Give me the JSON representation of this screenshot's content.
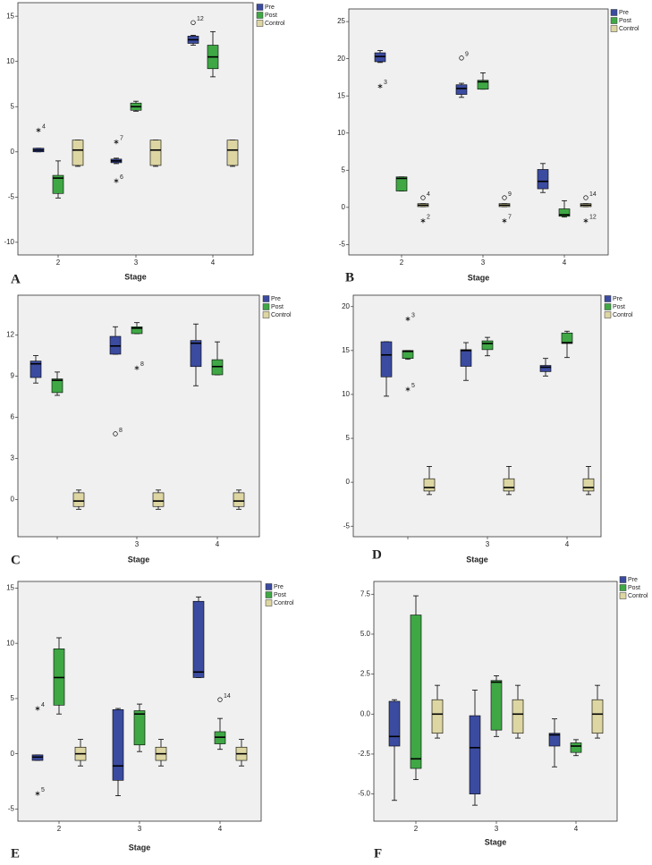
{
  "chart_data": [
    {
      "type": "box",
      "panel_label": "A",
      "xlabel": "Stage",
      "categories": [
        "2",
        "3",
        "4"
      ],
      "ylim": [
        -11.4,
        16.5
      ],
      "yticks": [
        15,
        10,
        5,
        0,
        -5,
        -10
      ],
      "series": [
        {
          "name": "Pre",
          "color": "#3b4ba0",
          "boxes": [
            {
              "min": 0.0,
              "q1": 0.0,
              "median": 0.2,
              "q3": 0.4,
              "max": 0.4,
              "outliers": [
                {
                  "value": 2.4,
                  "label": "4",
                  "symbol": "star"
                }
              ]
            },
            {
              "min": -1.3,
              "q1": -1.2,
              "median": -1.0,
              "q3": -0.8,
              "max": -0.7,
              "outliers": [
                {
                  "value": 1.1,
                  "label": "7",
                  "symbol": "star"
                },
                {
                  "value": -3.2,
                  "label": "6",
                  "symbol": "star"
                }
              ]
            },
            {
              "min": 11.8,
              "q1": 12.0,
              "median": 12.4,
              "q3": 12.8,
              "max": 12.9,
              "outliers": [
                {
                  "value": 14.3,
                  "label": "12",
                  "symbol": "circle"
                }
              ]
            }
          ]
        },
        {
          "name": "Post",
          "color": "#3fa845",
          "boxes": [
            {
              "min": -5.1,
              "q1": -4.6,
              "median": -2.9,
              "q3": -2.6,
              "max": -1.0,
              "outliers": []
            },
            {
              "min": 4.5,
              "q1": 4.6,
              "median": 5.0,
              "q3": 5.4,
              "max": 5.6,
              "outliers": []
            },
            {
              "min": 8.3,
              "q1": 9.2,
              "median": 10.5,
              "q3": 11.8,
              "max": 13.3,
              "outliers": []
            }
          ]
        },
        {
          "name": "Control",
          "color": "#ddd6a3",
          "boxes": [
            {
              "min": -1.6,
              "q1": -1.5,
              "median": 0.2,
              "q3": 1.3,
              "max": 1.3,
              "outliers": []
            },
            {
              "min": -1.6,
              "q1": -1.5,
              "median": 0.2,
              "q3": 1.3,
              "max": 1.3,
              "outliers": []
            },
            {
              "min": -1.6,
              "q1": -1.5,
              "median": 0.2,
              "q3": 1.3,
              "max": 1.3,
              "outliers": []
            }
          ]
        }
      ]
    },
    {
      "type": "box",
      "panel_label": "B",
      "xlabel": "Stage",
      "categories": [
        "2",
        "3",
        "4"
      ],
      "ylim": [
        -6.4,
        26.7
      ],
      "yticks": [
        25,
        20,
        15,
        10,
        5,
        0,
        -5
      ],
      "series": [
        {
          "name": "Pre",
          "color": "#3b4ba0",
          "boxes": [
            {
              "min": 19.5,
              "q1": 19.6,
              "median": 20.3,
              "q3": 20.8,
              "max": 21.1,
              "outliers": [
                {
                  "value": 16.3,
                  "label": "3",
                  "symbol": "star"
                }
              ]
            },
            {
              "min": 14.8,
              "q1": 15.2,
              "median": 16.0,
              "q3": 16.5,
              "max": 16.7,
              "outliers": [
                {
                  "value": 20.1,
                  "label": "9",
                  "symbol": "circle"
                }
              ]
            },
            {
              "min": 2.0,
              "q1": 2.5,
              "median": 3.5,
              "q3": 5.1,
              "max": 5.9,
              "outliers": []
            }
          ]
        },
        {
          "name": "Post",
          "color": "#3fa845",
          "boxes": [
            {
              "min": 2.2,
              "q1": 2.2,
              "median": 3.9,
              "q3": 4.1,
              "max": 4.1,
              "outliers": []
            },
            {
              "min": 15.9,
              "q1": 15.9,
              "median": 16.9,
              "q3": 17.1,
              "max": 18.1,
              "outliers": []
            },
            {
              "min": -1.3,
              "q1": -1.2,
              "median": -1.0,
              "q3": -0.2,
              "max": 0.9,
              "outliers": []
            }
          ]
        },
        {
          "name": "Control",
          "color": "#ddd6a3",
          "boxes": [
            {
              "min": 0.1,
              "q1": 0.1,
              "median": 0.3,
              "q3": 0.5,
              "max": 0.5,
              "outliers": [
                {
                  "value": 1.3,
                  "label": "4",
                  "symbol": "circle"
                },
                {
                  "value": -1.8,
                  "label": "2",
                  "symbol": "star"
                }
              ]
            },
            {
              "min": 0.1,
              "q1": 0.1,
              "median": 0.3,
              "q3": 0.5,
              "max": 0.5,
              "outliers": [
                {
                  "value": 1.3,
                  "label": "9",
                  "symbol": "circle"
                },
                {
                  "value": -1.8,
                  "label": "7",
                  "symbol": "star"
                }
              ]
            },
            {
              "min": 0.1,
              "q1": 0.1,
              "median": 0.3,
              "q3": 0.5,
              "max": 0.5,
              "outliers": [
                {
                  "value": 1.3,
                  "label": "14",
                  "symbol": "circle"
                },
                {
                  "value": -1.8,
                  "label": "12",
                  "symbol": "star"
                }
              ]
            }
          ]
        }
      ]
    },
    {
      "type": "box",
      "panel_label": "C",
      "xlabel": "Stage",
      "categories": [
        null,
        "3",
        "4"
      ],
      "ylim": [
        -2.7,
        14.9
      ],
      "yticks": [
        12,
        9,
        6,
        3,
        0
      ],
      "series": [
        {
          "name": "Pre",
          "color": "#3b4ba0",
          "boxes": [
            {
              "min": 8.5,
              "q1": 8.9,
              "median": 9.9,
              "q3": 10.1,
              "max": 10.5,
              "outliers": []
            },
            {
              "min": 10.6,
              "q1": 10.6,
              "median": 11.2,
              "q3": 11.9,
              "max": 12.6,
              "outliers": [
                {
                  "value": 4.8,
                  "label": "8",
                  "symbol": "circle"
                }
              ]
            },
            {
              "min": 8.3,
              "q1": 9.7,
              "median": 11.4,
              "q3": 11.6,
              "max": 12.8,
              "outliers": []
            }
          ]
        },
        {
          "name": "Post",
          "color": "#3fa845",
          "boxes": [
            {
              "min": 7.6,
              "q1": 7.8,
              "median": 8.7,
              "q3": 8.8,
              "max": 9.3,
              "outliers": []
            },
            {
              "min": 12.1,
              "q1": 12.1,
              "median": 12.5,
              "q3": 12.6,
              "max": 12.9,
              "outliers": [
                {
                  "value": 9.6,
                  "label": "8",
                  "symbol": "star"
                }
              ]
            },
            {
              "min": 9.1,
              "q1": 9.1,
              "median": 9.7,
              "q3": 10.2,
              "max": 11.5,
              "outliers": []
            }
          ]
        },
        {
          "name": "Control",
          "color": "#ddd6a3",
          "boxes": [
            {
              "min": -0.7,
              "q1": -0.5,
              "median": -0.1,
              "q3": 0.5,
              "max": 0.7,
              "outliers": []
            },
            {
              "min": -0.7,
              "q1": -0.5,
              "median": -0.1,
              "q3": 0.5,
              "max": 0.7,
              "outliers": []
            },
            {
              "min": -0.7,
              "q1": -0.5,
              "median": -0.1,
              "q3": 0.5,
              "max": 0.7,
              "outliers": []
            }
          ]
        }
      ]
    },
    {
      "type": "box",
      "panel_label": "D",
      "xlabel": "Stage",
      "categories": [
        null,
        "3",
        "4"
      ],
      "ylim": [
        -6.2,
        21.3
      ],
      "yticks": [
        20,
        15,
        10,
        5,
        0,
        -5
      ],
      "series": [
        {
          "name": "Pre",
          "color": "#3b4ba0",
          "boxes": [
            {
              "min": 9.8,
              "q1": 12.0,
              "median": 14.5,
              "q3": 16.0,
              "max": 16.0,
              "outliers": []
            },
            {
              "min": 11.6,
              "q1": 13.2,
              "median": 15.0,
              "q3": 15.1,
              "max": 15.9,
              "outliers": []
            },
            {
              "min": 12.1,
              "q1": 12.6,
              "median": 13.1,
              "q3": 13.3,
              "max": 14.1,
              "outliers": []
            }
          ]
        },
        {
          "name": "Post",
          "color": "#3fa845",
          "boxes": [
            {
              "min": 14.0,
              "q1": 14.1,
              "median": 14.9,
              "q3": 15.0,
              "max": 15.0,
              "outliers": [
                {
                  "value": 18.6,
                  "label": "3",
                  "symbol": "star"
                },
                {
                  "value": 10.6,
                  "label": "5",
                  "symbol": "star"
                }
              ]
            },
            {
              "min": 14.4,
              "q1": 15.1,
              "median": 15.8,
              "q3": 16.1,
              "max": 16.5,
              "outliers": []
            },
            {
              "min": 14.2,
              "q1": 15.8,
              "median": 15.9,
              "q3": 17.0,
              "max": 17.2,
              "outliers": []
            }
          ]
        },
        {
          "name": "Control",
          "color": "#ddd6a3",
          "boxes": [
            {
              "min": -1.4,
              "q1": -1.0,
              "median": -0.6,
              "q3": 0.4,
              "max": 1.8,
              "outliers": []
            },
            {
              "min": -1.4,
              "q1": -1.0,
              "median": -0.6,
              "q3": 0.4,
              "max": 1.8,
              "outliers": []
            },
            {
              "min": -1.4,
              "q1": -1.0,
              "median": -0.6,
              "q3": 0.4,
              "max": 1.8,
              "outliers": []
            }
          ]
        }
      ]
    },
    {
      "type": "box",
      "panel_label": "E",
      "xlabel": "Stage",
      "categories": [
        "2",
        "3",
        "4"
      ],
      "ylim": [
        -6.1,
        15.6
      ],
      "yticks": [
        15,
        10,
        5,
        0,
        -5
      ],
      "series": [
        {
          "name": "Pre",
          "color": "#3b4ba0",
          "boxes": [
            {
              "min": -0.6,
              "q1": -0.6,
              "median": -0.3,
              "q3": -0.1,
              "max": -0.1,
              "outliers": [
                {
                  "value": 4.1,
                  "label": "4",
                  "symbol": "star"
                },
                {
                  "value": -3.6,
                  "label": "5",
                  "symbol": "star"
                }
              ]
            },
            {
              "min": -3.8,
              "q1": -2.4,
              "median": -1.1,
              "q3": 4.0,
              "max": 4.1,
              "outliers": []
            },
            {
              "min": 6.9,
              "q1": 6.9,
              "median": 7.4,
              "q3": 13.8,
              "max": 14.2,
              "outliers": []
            }
          ]
        },
        {
          "name": "Post",
          "color": "#3fa845",
          "boxes": [
            {
              "min": 3.6,
              "q1": 4.4,
              "median": 6.9,
              "q3": 9.5,
              "max": 10.5,
              "outliers": []
            },
            {
              "min": 0.2,
              "q1": 0.8,
              "median": 3.6,
              "q3": 3.9,
              "max": 4.5,
              "outliers": []
            },
            {
              "min": 0.4,
              "q1": 0.9,
              "median": 1.5,
              "q3": 2.0,
              "max": 3.2,
              "outliers": [
                {
                  "value": 4.9,
                  "label": "14",
                  "symbol": "circle"
                }
              ]
            }
          ]
        },
        {
          "name": "Control",
          "color": "#ddd6a3",
          "boxes": [
            {
              "min": -1.1,
              "q1": -0.6,
              "median": 0.0,
              "q3": 0.6,
              "max": 1.3,
              "outliers": []
            },
            {
              "min": -1.1,
              "q1": -0.6,
              "median": 0.0,
              "q3": 0.6,
              "max": 1.3,
              "outliers": []
            },
            {
              "min": -1.1,
              "q1": -0.6,
              "median": 0.0,
              "q3": 0.6,
              "max": 1.3,
              "outliers": []
            }
          ]
        }
      ]
    },
    {
      "type": "box",
      "panel_label": "F",
      "xlabel": "Stage",
      "categories": [
        "2",
        "3",
        "4"
      ],
      "ylim": [
        -6.7,
        8.3
      ],
      "yticks": [
        7.5,
        {
          "value": 5,
          "label": "5.0"
        },
        2.5,
        {
          "value": 0,
          "label": "0.0"
        },
        -2.5,
        {
          "value": -5,
          "label": "-5.0"
        }
      ],
      "series": [
        {
          "name": "Pre",
          "color": "#3b4ba0",
          "boxes": [
            {
              "min": -5.4,
              "q1": -2.0,
              "median": -1.4,
              "q3": 0.8,
              "max": 0.9,
              "outliers": []
            },
            {
              "min": -5.7,
              "q1": -5.0,
              "median": -2.1,
              "q3": -0.1,
              "max": 1.5,
              "outliers": []
            },
            {
              "min": -3.3,
              "q1": -2.0,
              "median": -1.3,
              "q3": -1.2,
              "max": -0.3,
              "outliers": []
            }
          ]
        },
        {
          "name": "Post",
          "color": "#3fa845",
          "boxes": [
            {
              "min": -4.1,
              "q1": -3.4,
              "median": -2.8,
              "q3": 6.2,
              "max": 7.4,
              "outliers": []
            },
            {
              "min": -1.4,
              "q1": -1.0,
              "median": 2.0,
              "q3": 2.1,
              "max": 2.4,
              "outliers": []
            },
            {
              "min": -2.6,
              "q1": -2.4,
              "median": -2.0,
              "q3": -1.8,
              "max": -1.6,
              "outliers": []
            }
          ]
        },
        {
          "name": "Control",
          "color": "#ddd6a3",
          "boxes": [
            {
              "min": -1.5,
              "q1": -1.2,
              "median": 0.0,
              "q3": 0.9,
              "max": 1.8,
              "outliers": []
            },
            {
              "min": -1.5,
              "q1": -1.2,
              "median": 0.0,
              "q3": 0.9,
              "max": 1.8,
              "outliers": []
            },
            {
              "min": -1.5,
              "q1": -1.2,
              "median": 0.0,
              "q3": 0.9,
              "max": 1.8,
              "outliers": []
            }
          ]
        }
      ]
    }
  ]
}
